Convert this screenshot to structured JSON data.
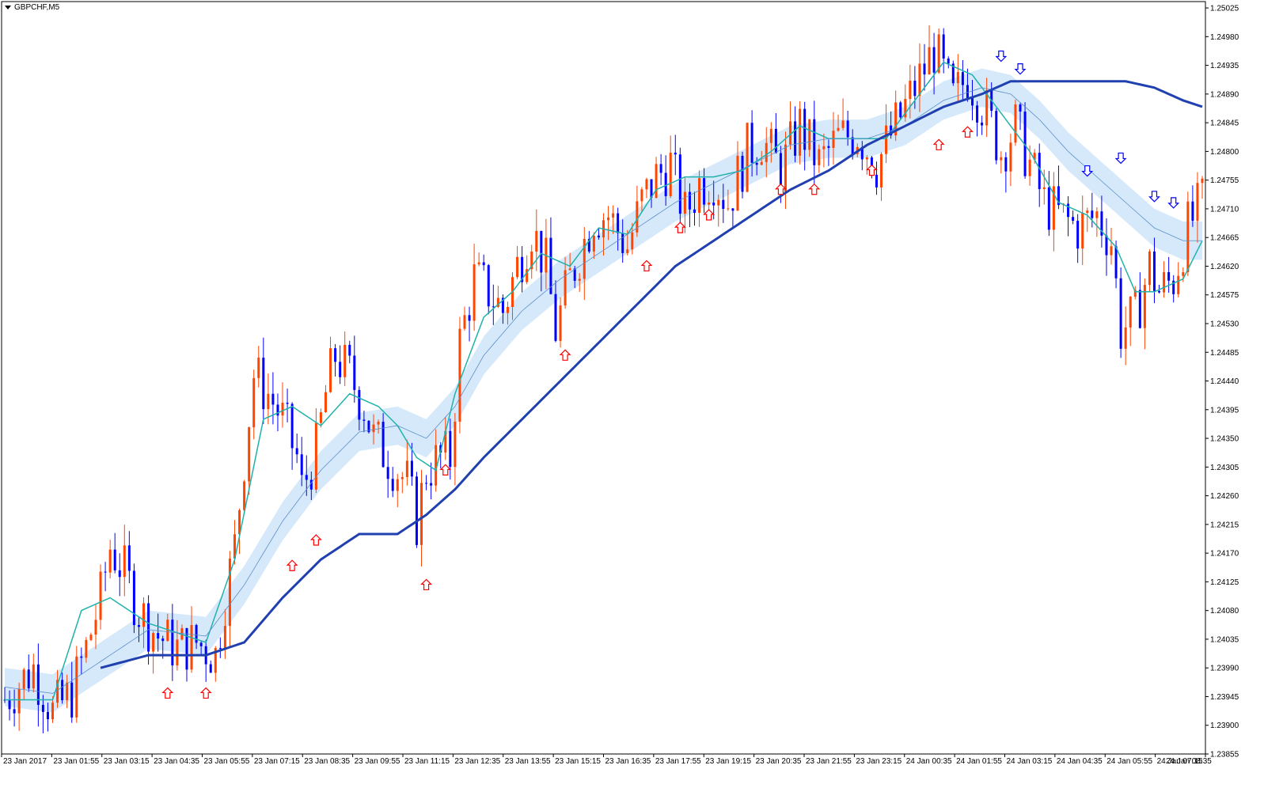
{
  "symbol": "GBPCHF,M5",
  "colors": {
    "background": "#ffffff",
    "bull": "#ff4500",
    "bear": "#0000ff",
    "ma_fast": "#20b2aa",
    "ma_slow": "#2040b0",
    "band_fill": "#d6e9fb",
    "band_mid": "#5a8fc8",
    "arrow_up": "#ff0000",
    "arrow_down": "#0000ff"
  },
  "chart_data": {
    "type": "candlestick",
    "y_ticks": [
      "1.25025",
      "1.24980",
      "1.24935",
      "1.24890",
      "1.24845",
      "1.24800",
      "1.24755",
      "1.24710",
      "1.24665",
      "1.24620",
      "1.24575",
      "1.24530",
      "1.24485",
      "1.24440",
      "1.24395",
      "1.24350",
      "1.24305",
      "1.24260",
      "1.24215",
      "1.24170",
      "1.24125",
      "1.24080",
      "1.24035",
      "1.23990",
      "1.23945",
      "1.23900",
      "1.23855"
    ],
    "ylim": [
      1.23855,
      1.25035
    ],
    "x_ticks": [
      "23 Jan 2017",
      "23 Jan 01:55",
      "23 Jan 03:15",
      "23 Jan 04:35",
      "23 Jan 05:55",
      "23 Jan 07:15",
      "23 Jan 08:35",
      "23 Jan 09:55",
      "23 Jan 11:15",
      "23 Jan 12:35",
      "23 Jan 13:55",
      "23 Jan 15:15",
      "23 Jan 16:35",
      "23 Jan 17:55",
      "23 Jan 19:15",
      "23 Jan 20:35",
      "23 Jan 21:55",
      "23 Jan 23:15",
      "24 Jan 00:35",
      "24 Jan 01:55",
      "24 Jan 03:15",
      "24 Jan 04:35",
      "24 Jan 05:55",
      "24 Jan 07:15",
      "24 Jan 08:35"
    ],
    "close_path": [
      [
        0,
        1.2394
      ],
      [
        6,
        1.2399
      ],
      [
        10,
        1.2392
      ],
      [
        14,
        1.2395
      ],
      [
        17,
        1.2402
      ],
      [
        20,
        1.241
      ],
      [
        22,
        1.2418
      ],
      [
        25,
        1.2414
      ],
      [
        28,
        1.2408
      ],
      [
        32,
        1.2404
      ],
      [
        36,
        1.2402
      ],
      [
        40,
        1.2403
      ],
      [
        44,
        1.2401
      ],
      [
        46,
        1.241
      ],
      [
        48,
        1.2418
      ],
      [
        50,
        1.2432
      ],
      [
        52,
        1.2445
      ],
      [
        55,
        1.2442
      ],
      [
        58,
        1.2438
      ],
      [
        61,
        1.2432
      ],
      [
        62,
        1.2427
      ],
      [
        65,
        1.2433
      ],
      [
        67,
        1.2442
      ],
      [
        69,
        1.2448
      ],
      [
        72,
        1.2445
      ],
      [
        75,
        1.244
      ],
      [
        77,
        1.2435
      ],
      [
        80,
        1.2432
      ],
      [
        84,
        1.2428
      ],
      [
        86,
        1.2422
      ],
      [
        88,
        1.243
      ],
      [
        91,
        1.2432
      ],
      [
        93,
        1.2432
      ],
      [
        95,
        1.245
      ],
      [
        98,
        1.246
      ],
      [
        101,
        1.2458
      ],
      [
        104,
        1.2455
      ],
      [
        107,
        1.2462
      ],
      [
        110,
        1.2468
      ],
      [
        113,
        1.2462
      ],
      [
        115,
        1.2452
      ],
      [
        118,
        1.246
      ],
      [
        121,
        1.2466
      ],
      [
        123,
        1.247
      ],
      [
        126,
        1.247
      ],
      [
        130,
        1.2465
      ],
      [
        133,
        1.2472
      ],
      [
        136,
        1.2476
      ],
      [
        139,
        1.2478
      ],
      [
        142,
        1.247
      ],
      [
        145,
        1.2475
      ],
      [
        148,
        1.2476
      ],
      [
        151,
        1.2472
      ],
      [
        155,
        1.248
      ],
      [
        158,
        1.2482
      ],
      [
        162,
        1.2477
      ],
      [
        166,
        1.2484
      ],
      [
        170,
        1.2478
      ],
      [
        174,
        1.2482
      ],
      [
        178,
        1.2483
      ],
      [
        182,
        1.2478
      ],
      [
        186,
        1.2484
      ],
      [
        190,
        1.249
      ],
      [
        194,
        1.2496
      ],
      [
        198,
        1.2488
      ],
      [
        201,
        1.2492
      ],
      [
        205,
        1.2486
      ],
      [
        208,
        1.248
      ],
      [
        211,
        1.2484
      ],
      [
        214,
        1.2478
      ],
      [
        217,
        1.2472
      ],
      [
        220,
        1.247
      ],
      [
        224,
        1.2468
      ],
      [
        228,
        1.247
      ],
      [
        231,
        1.2466
      ],
      [
        233,
        1.2452
      ],
      [
        236,
        1.2454
      ],
      [
        239,
        1.2462
      ],
      [
        241,
        1.2458
      ],
      [
        244,
        1.246
      ],
      [
        247,
        1.2468
      ],
      [
        250,
        1.2472
      ]
    ],
    "series": [
      {
        "values": [
          [
            0,
            1.2394
          ],
          [
            10,
            1.2394
          ],
          [
            16,
            1.2408
          ],
          [
            22,
            1.241
          ],
          [
            30,
            1.2406
          ],
          [
            42,
            1.2403
          ],
          [
            48,
            1.2416
          ],
          [
            54,
            1.2438
          ],
          [
            60,
            1.244
          ],
          [
            66,
            1.2437
          ],
          [
            72,
            1.2442
          ],
          [
            78,
            1.244
          ],
          [
            82,
            1.2437
          ],
          [
            86,
            1.2432
          ],
          [
            90,
            1.243
          ],
          [
            94,
            1.2442
          ],
          [
            100,
            1.2454
          ],
          [
            106,
            1.2458
          ],
          [
            112,
            1.2464
          ],
          [
            118,
            1.2462
          ],
          [
            124,
            1.2468
          ],
          [
            130,
            1.2467
          ],
          [
            136,
            1.2474
          ],
          [
            142,
            1.2476
          ],
          [
            148,
            1.2476
          ],
          [
            154,
            1.2477
          ],
          [
            160,
            1.248
          ],
          [
            166,
            1.2484
          ],
          [
            172,
            1.2482
          ],
          [
            178,
            1.2482
          ],
          [
            184,
            1.2482
          ],
          [
            190,
            1.2488
          ],
          [
            196,
            1.2494
          ],
          [
            202,
            1.2492
          ],
          [
            208,
            1.2486
          ],
          [
            214,
            1.248
          ],
          [
            220,
            1.2472
          ],
          [
            226,
            1.247
          ],
          [
            232,
            1.2465
          ],
          [
            236,
            1.2458
          ],
          [
            240,
            1.2458
          ],
          [
            246,
            1.246
          ],
          [
            250,
            1.2466
          ]
        ]
      },
      {
        "values": [
          [
            0,
            1.2396
          ],
          [
            10,
            1.2395
          ],
          [
            20,
            1.24
          ],
          [
            30,
            1.2405
          ],
          [
            42,
            1.2404
          ],
          [
            50,
            1.2412
          ],
          [
            58,
            1.2422
          ],
          [
            66,
            1.243
          ],
          [
            74,
            1.2436
          ],
          [
            82,
            1.2437
          ],
          [
            88,
            1.2435
          ],
          [
            94,
            1.244
          ],
          [
            100,
            1.2448
          ],
          [
            108,
            1.2455
          ],
          [
            116,
            1.246
          ],
          [
            124,
            1.2464
          ],
          [
            132,
            1.2468
          ],
          [
            140,
            1.2472
          ],
          [
            148,
            1.2475
          ],
          [
            156,
            1.2478
          ],
          [
            164,
            1.2481
          ],
          [
            172,
            1.2482
          ],
          [
            180,
            1.2482
          ],
          [
            188,
            1.2484
          ],
          [
            196,
            1.2488
          ],
          [
            204,
            1.249
          ],
          [
            210,
            1.2489
          ],
          [
            216,
            1.2485
          ],
          [
            222,
            1.248
          ],
          [
            228,
            1.2476
          ],
          [
            234,
            1.2472
          ],
          [
            240,
            1.2468
          ],
          [
            246,
            1.2466
          ],
          [
            250,
            1.2466
          ]
        ]
      },
      {
        "values": [
          [
            20,
            1.2399
          ],
          [
            30,
            1.2401
          ],
          [
            42,
            1.2401
          ],
          [
            50,
            1.2403
          ],
          [
            58,
            1.241
          ],
          [
            66,
            1.2416
          ],
          [
            74,
            1.242
          ],
          [
            82,
            1.242
          ],
          [
            88,
            1.2423
          ],
          [
            94,
            1.2427
          ],
          [
            100,
            1.2432
          ],
          [
            108,
            1.2438
          ],
          [
            116,
            1.2444
          ],
          [
            124,
            1.245
          ],
          [
            132,
            1.2456
          ],
          [
            140,
            1.2462
          ],
          [
            148,
            1.2466
          ],
          [
            156,
            1.247
          ],
          [
            164,
            1.2474
          ],
          [
            172,
            1.2477
          ],
          [
            180,
            1.2481
          ],
          [
            188,
            1.2484
          ],
          [
            196,
            1.2487
          ],
          [
            204,
            1.2489
          ],
          [
            210,
            1.2491
          ],
          [
            216,
            1.2491
          ],
          [
            222,
            1.2491
          ],
          [
            228,
            1.2491
          ],
          [
            234,
            1.2491
          ],
          [
            240,
            1.249
          ],
          [
            246,
            1.2488
          ],
          [
            250,
            1.2487
          ]
        ]
      }
    ],
    "band_width": 0.0003,
    "arrows_up": [
      [
        34,
        1.2395
      ],
      [
        42,
        1.2395
      ],
      [
        60,
        1.2415
      ],
      [
        65,
        1.2419
      ],
      [
        88,
        1.2412
      ],
      [
        92,
        1.243
      ],
      [
        117,
        1.2448
      ],
      [
        134,
        1.2462
      ],
      [
        141,
        1.2468
      ],
      [
        147,
        1.247
      ],
      [
        162,
        1.2474
      ],
      [
        169,
        1.2474
      ],
      [
        181,
        1.2477
      ],
      [
        195,
        1.2481
      ],
      [
        201,
        1.2483
      ]
    ],
    "arrows_down": [
      [
        208,
        1.2495
      ],
      [
        212,
        1.2493
      ],
      [
        226,
        1.2477
      ],
      [
        233,
        1.2479
      ],
      [
        240,
        1.2473
      ],
      [
        244,
        1.2472
      ]
    ],
    "x_max": 250
  }
}
